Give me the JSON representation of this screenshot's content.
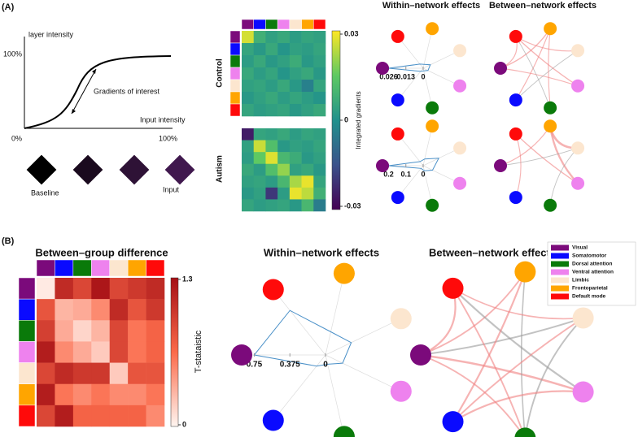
{
  "networks": [
    {
      "name": "Visual",
      "color": "#7b0a7b"
    },
    {
      "name": "Somatomotor",
      "color": "#0a0aff"
    },
    {
      "name": "Dorsal attention",
      "color": "#0a7a0a"
    },
    {
      "name": "Ventral attention",
      "color": "#ee82ee"
    },
    {
      "name": "Limbic",
      "color": "#fce6cf"
    },
    {
      "name": "Frontoparietal",
      "color": "#ffa500"
    },
    {
      "name": "Default mode",
      "color": "#ff0a0a"
    }
  ],
  "panel_a": {
    "label": "(A)",
    "schematic": {
      "y_label": "layer intensity",
      "y_max": "100%",
      "annotation": "Gradients of interest",
      "x_label": "Input intensity",
      "x_min": "0%",
      "x_max": "100%",
      "images": [
        "Baseline",
        "Input"
      ]
    },
    "heatmaps": {
      "groups": [
        "Control",
        "Autism"
      ],
      "colorbar_label": "Integrated gradients",
      "clim": [
        -0.03,
        0.03
      ],
      "colorbar_ticks": [
        0.03,
        0,
        -0.03
      ],
      "matrices": [
        [
          [
            0.026,
            0.008,
            0.004,
            0.006,
            0.003,
            0.005,
            0.004
          ],
          [
            0.005,
            0.002,
            0.006,
            0.001,
            0.004,
            0.003,
            0.005
          ],
          [
            0.003,
            0.006,
            0.002,
            0.004,
            0.007,
            0.002,
            0.004
          ],
          [
            0.006,
            0.003,
            0.005,
            0.001,
            0.004,
            0.006,
            0.002
          ],
          [
            0.004,
            0.005,
            0.003,
            0.006,
            0.002,
            -0.004,
            0.005
          ],
          [
            0.002,
            0.004,
            0.006,
            0.003,
            0.005,
            0.003,
            0.001
          ],
          [
            0.005,
            0.003,
            0.004,
            0.005,
            0.002,
            0.004,
            0.006
          ]
        ],
        [
          [
            -0.025,
            0.005,
            0.004,
            0.006,
            0.003,
            0.005,
            0.004
          ],
          [
            0.004,
            0.025,
            0.012,
            0.002,
            0.004,
            0.003,
            0.005
          ],
          [
            0.003,
            0.015,
            0.027,
            0.01,
            0.007,
            0.002,
            0.004
          ],
          [
            0.006,
            0.003,
            0.012,
            0.02,
            0.004,
            0.006,
            0.002
          ],
          [
            0.004,
            0.005,
            0.003,
            0.01,
            0.022,
            0.028,
            0.005
          ],
          [
            0.002,
            0.004,
            -0.02,
            0.003,
            0.028,
            0.024,
            0.008
          ],
          [
            0.005,
            0.003,
            0.004,
            0.005,
            0.002,
            0.01,
            -0.005
          ]
        ]
      ]
    },
    "within_title": "Within–network effects",
    "between_title": "Between–network effects",
    "within": [
      {
        "values": [
          0.026,
          0.003,
          0.002,
          0.004,
          0.006,
          0.003,
          0.004
        ],
        "ticks": [
          0.026,
          0.013,
          0
        ]
      },
      {
        "values": [
          0.2,
          0.02,
          0.03,
          0.06,
          0.1,
          0.04,
          0.03
        ],
        "ticks": [
          0.2,
          0.1,
          0
        ]
      }
    ],
    "between": [
      {
        "edges": [
          [
            0,
            6,
            0.3
          ],
          [
            0,
            5,
            0.4
          ],
          [
            6,
            4,
            0.3
          ],
          [
            5,
            1,
            0.3
          ],
          [
            6,
            3,
            0.4
          ],
          [
            0,
            3,
            0.3
          ],
          [
            4,
            1,
            -0.2
          ],
          [
            5,
            2,
            0.3
          ],
          [
            6,
            2,
            -0.2
          ]
        ]
      },
      {
        "edges": [
          [
            5,
            4,
            0.9
          ],
          [
            5,
            3,
            0.8
          ],
          [
            6,
            3,
            0.4
          ],
          [
            0,
            4,
            -0.2
          ],
          [
            6,
            1,
            0.3
          ],
          [
            0,
            5,
            0.3
          ],
          [
            4,
            2,
            -0.2
          ]
        ]
      }
    ]
  },
  "panel_b": {
    "label": "(B)",
    "heatmap_title": "Between–group difference",
    "clim": [
      0,
      1.3
    ],
    "colorbar_ticks": [
      1.3,
      0
    ],
    "colorbar_label": "T-stataistic",
    "matrix": [
      [
        0.05,
        1.1,
        0.9,
        1.25,
        0.9,
        1.0,
        1.1
      ],
      [
        0.8,
        0.3,
        0.35,
        0.5,
        1.1,
        0.8,
        1.0
      ],
      [
        0.95,
        0.35,
        0.15,
        0.3,
        0.9,
        0.6,
        0.7
      ],
      [
        1.2,
        0.5,
        0.35,
        0.2,
        0.9,
        0.6,
        0.7
      ],
      [
        0.9,
        1.1,
        1.0,
        1.0,
        0.2,
        0.8,
        0.8
      ],
      [
        1.2,
        0.6,
        0.5,
        0.6,
        0.5,
        0.5,
        0.6
      ],
      [
        0.9,
        1.2,
        0.7,
        0.7,
        0.7,
        0.7,
        0.5
      ]
    ],
    "within_title": "Within–network effects",
    "between_title": "Between–network effects",
    "within": {
      "values": [
        0.75,
        0.15,
        0.1,
        0.2,
        0.3,
        0.25,
        0.6
      ],
      "ticks": [
        0.75,
        0.375,
        0
      ]
    },
    "between": {
      "edges": [
        [
          0,
          6,
          0.6
        ],
        [
          0,
          5,
          0.5
        ],
        [
          0,
          4,
          -0.5
        ],
        [
          0,
          3,
          0.7
        ],
        [
          0,
          2,
          0.5
        ],
        [
          6,
          3,
          -0.6
        ],
        [
          6,
          2,
          0.5
        ],
        [
          5,
          1,
          0.6
        ],
        [
          5,
          2,
          -0.4
        ],
        [
          4,
          1,
          0.5
        ],
        [
          4,
          2,
          -0.5
        ],
        [
          3,
          1,
          0.6
        ],
        [
          6,
          4,
          0.4
        ]
      ]
    }
  }
}
